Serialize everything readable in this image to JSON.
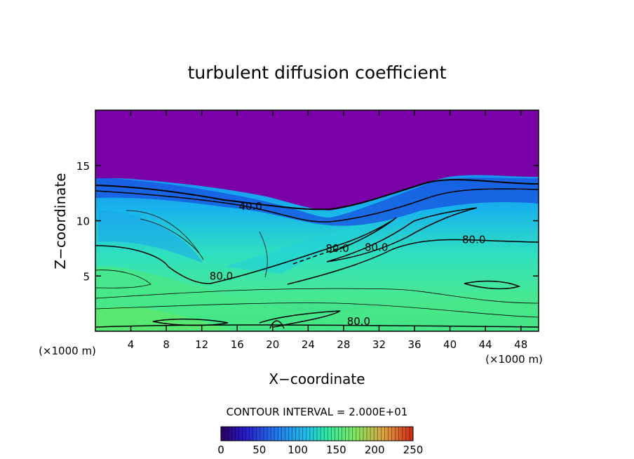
{
  "chart_data": {
    "type": "heatmap",
    "title": "turbulent diffusion coefficient",
    "xlabel": "X−coordinate",
    "ylabel": "Z−coordinate",
    "x_unit_left": "(×1000 m)",
    "x_unit_right": "(×1000 m)",
    "xlim": [
      0,
      50
    ],
    "ylim": [
      0,
      20
    ],
    "xticks": [
      4,
      8,
      12,
      16,
      20,
      24,
      28,
      32,
      36,
      40,
      44,
      48
    ],
    "yticks": [
      5,
      10,
      15
    ],
    "contour_interval_label": "CONTOUR INTERVAL = 2.000E+01",
    "colorbar": {
      "min": 0,
      "max": 250,
      "ticks": [
        0,
        50,
        100,
        150,
        200,
        250
      ],
      "colors": [
        "#7a00a8",
        "#1f10d8",
        "#0a7cf2",
        "#18b8ee",
        "#3af0b8",
        "#60f060",
        "#b0e040",
        "#f0a040",
        "#e03020"
      ]
    },
    "contour_labels": [
      {
        "text": "40.0",
        "x": 17.5,
        "z": 11.3
      },
      {
        "text": "80.0",
        "x": 14.2,
        "z": 5.0
      },
      {
        "text": "80.0",
        "x": 27.3,
        "z": 7.5
      },
      {
        "text": "80.0",
        "x": 31.7,
        "z": 7.6
      },
      {
        "text": "80.0",
        "x": 42.7,
        "z": 8.3
      },
      {
        "text": "80.0",
        "x": 29.7,
        "z": 0.9
      }
    ]
  }
}
